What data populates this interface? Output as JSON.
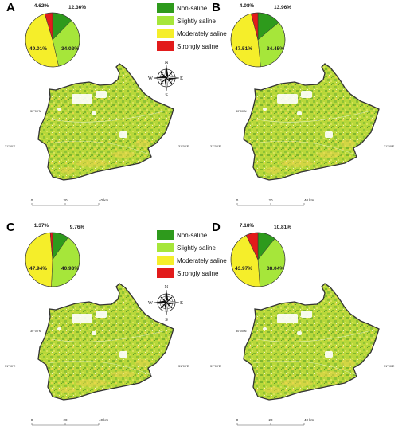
{
  "colors": {
    "non_saline": "#2e9a1c",
    "slightly_saline": "#a6e63a",
    "moderately_saline": "#f5ee2a",
    "strongly_saline": "#e21b1b",
    "boundary": "#333333"
  },
  "legend": [
    {
      "label": "Non-saline",
      "color_key": "non_saline"
    },
    {
      "label": "Slightly saline",
      "color_key": "slightly_saline"
    },
    {
      "label": "Moderately saline",
      "color_key": "moderately_saline"
    },
    {
      "label": "Strongly saline",
      "color_key": "strongly_saline"
    }
  ],
  "compass": {
    "n": "N",
    "s": "S",
    "e": "E",
    "w": "W"
  },
  "coords": {
    "lat_left": "30°00'N",
    "lon_left": "31°00'E",
    "lon_right": "31°00'E"
  },
  "scale": {
    "ticks": [
      "0",
      "20",
      "40 km"
    ]
  },
  "panels": [
    {
      "letter": "A",
      "percentages": [
        "12.36%",
        "34.02%",
        "49.01%",
        "4.62%"
      ],
      "values": [
        12.36,
        34.02,
        49.01,
        4.62
      ]
    },
    {
      "letter": "B",
      "percentages": [
        "13.96%",
        "34.45%",
        "47.51%",
        "4.08%"
      ],
      "values": [
        13.96,
        34.45,
        47.51,
        4.08
      ]
    },
    {
      "letter": "C",
      "percentages": [
        "9.76%",
        "40.93%",
        "47.94%",
        "1.37%"
      ],
      "values": [
        9.76,
        40.93,
        47.94,
        1.37
      ]
    },
    {
      "letter": "D",
      "percentages": [
        "10.81%",
        "38.04%",
        "43.97%",
        "7.18%"
      ],
      "values": [
        10.81,
        38.04,
        43.97,
        7.18
      ]
    }
  ]
}
